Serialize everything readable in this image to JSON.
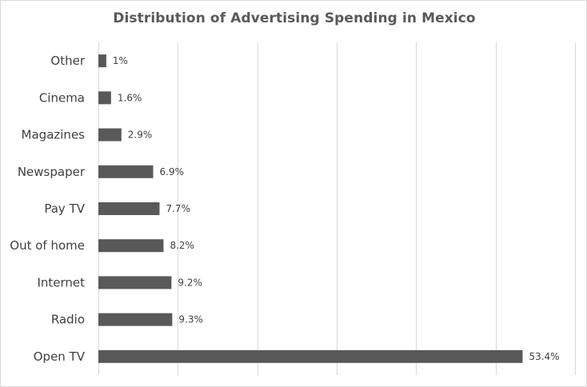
{
  "chart_data": {
    "type": "bar",
    "orientation": "horizontal",
    "title": "Distribution  of Advertising  Spending  in Mexico",
    "categories": [
      "Other",
      "Cinema",
      "Magazines",
      "Newspaper",
      "Pay TV",
      "Out of home",
      "Internet",
      "Radio",
      "Open TV"
    ],
    "values": [
      1,
      1.6,
      2.9,
      6.9,
      7.7,
      8.2,
      9.2,
      9.3,
      53.4
    ],
    "value_labels": [
      "1%",
      "1.6%",
      "2.9%",
      "6.9%",
      "7.7%",
      "8.2%",
      "9.2%",
      "9.3%",
      "53.4%"
    ],
    "xlim": [
      0,
      60
    ],
    "x_gridlines": [
      0,
      10,
      20,
      30,
      40,
      50,
      60
    ],
    "grid": true,
    "legend": "none",
    "bar_color": "#595959"
  }
}
